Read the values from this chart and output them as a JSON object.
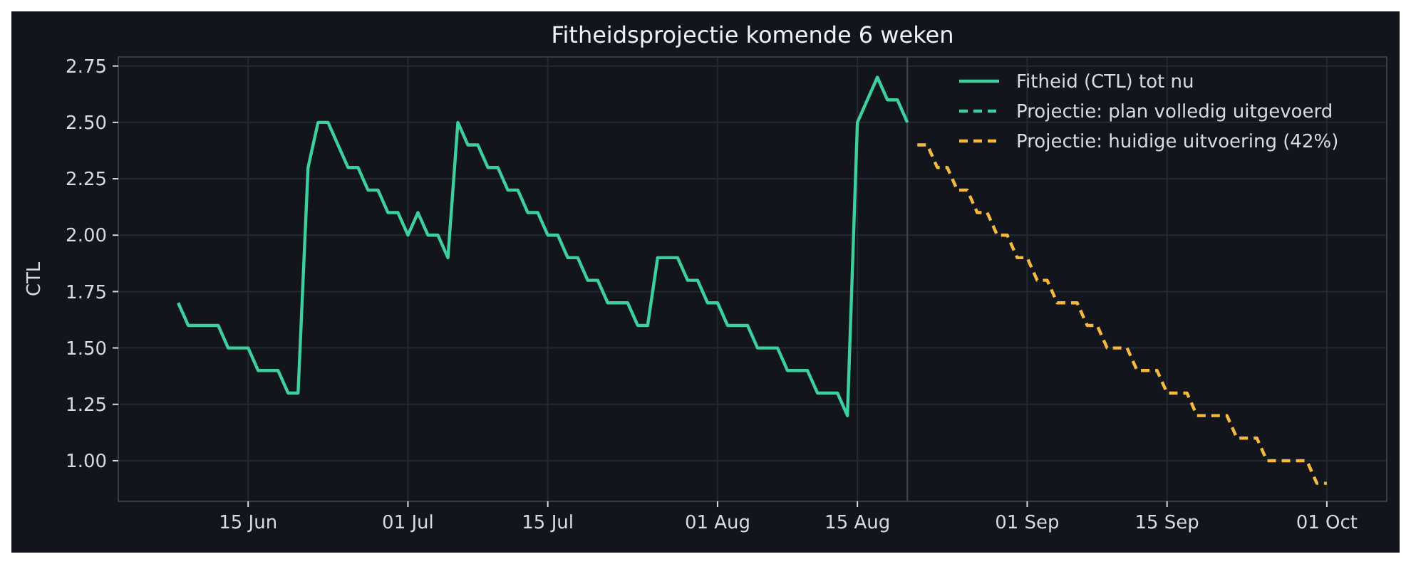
{
  "chart_data": {
    "type": "line",
    "title": "Fitheidsprojectie komende 6 weken",
    "ylabel": "CTL",
    "xlim": [
      "--06-02",
      "--10-07"
    ],
    "xticks": [
      {
        "value": "--06-15",
        "label": "15 Jun"
      },
      {
        "value": "--07-01",
        "label": "01 Jul"
      },
      {
        "value": "--07-15",
        "label": "15 Jul"
      },
      {
        "value": "--08-01",
        "label": "01 Aug"
      },
      {
        "value": "--08-15",
        "label": "15 Aug"
      },
      {
        "value": "--09-01",
        "label": "01 Sep"
      },
      {
        "value": "--09-15",
        "label": "15 Sep"
      },
      {
        "value": "--10-01",
        "label": "01 Oct"
      }
    ],
    "ylim": [
      0.82,
      2.79
    ],
    "yticks": [
      {
        "value": 1,
        "label": "1.00"
      },
      {
        "value": 1.25,
        "label": "1.25"
      },
      {
        "value": 1.5,
        "label": "1.50"
      },
      {
        "value": 1.75,
        "label": "1.75"
      },
      {
        "value": 2,
        "label": "2.00"
      },
      {
        "value": 2.25,
        "label": "2.25"
      },
      {
        "value": 2.5,
        "label": "2.50"
      },
      {
        "value": 2.75,
        "label": "2.75"
      }
    ],
    "grid": true,
    "legend": "top right",
    "ref_lines": [
      {
        "axis": "x",
        "value": "--08-20",
        "color": "#3a404c",
        "line_style": "solid"
      }
    ],
    "series": [
      {
        "name": "Fitheid (CTL) tot nu",
        "color": "#3ecf9e",
        "line_style": "solid",
        "x": [
          "--06-08",
          "--06-09",
          "--06-10",
          "--06-11",
          "--06-12",
          "--06-13",
          "--06-14",
          "--06-15",
          "--06-16",
          "--06-17",
          "--06-18",
          "--06-19",
          "--06-20",
          "--06-21",
          "--06-22",
          "--06-23",
          "--06-24",
          "--06-25",
          "--06-26",
          "--06-27",
          "--06-28",
          "--06-29",
          "--06-30",
          "--07-01",
          "--07-02",
          "--07-03",
          "--07-04",
          "--07-05",
          "--07-06",
          "--07-07",
          "--07-08",
          "--07-09",
          "--07-10",
          "--07-11",
          "--07-12",
          "--07-13",
          "--07-14",
          "--07-15",
          "--07-16",
          "--07-17",
          "--07-18",
          "--07-19",
          "--07-20",
          "--07-21",
          "--07-22",
          "--07-23",
          "--07-24",
          "--07-25",
          "--07-26",
          "--07-27",
          "--07-28",
          "--07-29",
          "--07-30",
          "--07-31",
          "--08-01",
          "--08-02",
          "--08-03",
          "--08-04",
          "--08-05",
          "--08-06",
          "--08-07",
          "--08-08",
          "--08-09",
          "--08-10",
          "--08-11",
          "--08-12",
          "--08-13",
          "--08-14",
          "--08-15",
          "--08-16",
          "--08-17",
          "--08-18",
          "--08-19",
          "--08-20"
        ],
        "values": [
          1.7,
          1.6,
          1.6,
          1.6,
          1.6,
          1.5,
          1.5,
          1.5,
          1.4,
          1.4,
          1.4,
          1.3,
          1.3,
          2.3,
          2.5,
          2.5,
          2.4,
          2.3,
          2.3,
          2.2,
          2.2,
          2.1,
          2.1,
          2.0,
          2.1,
          2.0,
          2.0,
          1.9,
          2.5,
          2.4,
          2.4,
          2.3,
          2.3,
          2.2,
          2.2,
          2.1,
          2.1,
          2.0,
          2.0,
          1.9,
          1.9,
          1.8,
          1.8,
          1.7,
          1.7,
          1.7,
          1.6,
          1.6,
          1.9,
          1.9,
          1.9,
          1.8,
          1.8,
          1.7,
          1.7,
          1.6,
          1.6,
          1.6,
          1.5,
          1.5,
          1.5,
          1.4,
          1.4,
          1.4,
          1.3,
          1.3,
          1.3,
          1.2,
          2.5,
          2.6,
          2.7,
          2.6,
          2.6,
          2.5
        ]
      },
      {
        "name": "Projectie: plan volledig uitgevoerd",
        "color": "#3ecf9e",
        "line_style": "dashed"
      },
      {
        "name": "Projectie: huidige uitvoering (42%)",
        "color": "#f5b93e",
        "line_style": "dashed",
        "x": [
          "--08-21",
          "--08-22",
          "--08-23",
          "--08-24",
          "--08-25",
          "--08-26",
          "--08-27",
          "--08-28",
          "--08-29",
          "--08-30",
          "--08-31",
          "--09-01",
          "--09-02",
          "--09-03",
          "--09-04",
          "--09-05",
          "--09-06",
          "--09-07",
          "--09-08",
          "--09-09",
          "--09-10",
          "--09-11",
          "--09-12",
          "--09-13",
          "--09-14",
          "--09-15",
          "--09-16",
          "--09-17",
          "--09-18",
          "--09-19",
          "--09-20",
          "--09-21",
          "--09-22",
          "--09-23",
          "--09-24",
          "--09-25",
          "--09-26",
          "--09-27",
          "--09-28",
          "--09-29",
          "--09-30",
          "--10-01"
        ],
        "values": [
          2.4,
          2.4,
          2.3,
          2.3,
          2.2,
          2.2,
          2.1,
          2.1,
          2.0,
          2.0,
          1.9,
          1.9,
          1.8,
          1.8,
          1.7,
          1.7,
          1.7,
          1.6,
          1.6,
          1.5,
          1.5,
          1.5,
          1.4,
          1.4,
          1.4,
          1.3,
          1.3,
          1.3,
          1.2,
          1.2,
          1.2,
          1.2,
          1.1,
          1.1,
          1.1,
          1.0,
          1.0,
          1.0,
          1.0,
          1.0,
          0.9,
          0.9
        ]
      }
    ]
  }
}
